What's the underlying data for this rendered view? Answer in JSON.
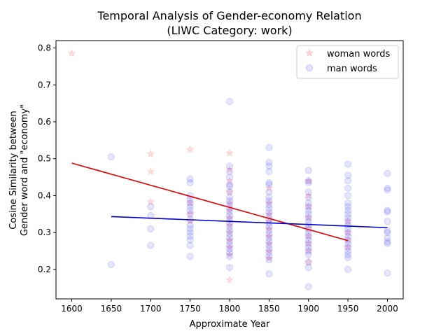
{
  "chart_data": {
    "type": "scatter",
    "title": [
      "Temporal Analysis of Gender-economy Relation",
      "(LIWC Category: work)"
    ],
    "xlabel": "Approximate Year",
    "ylabel": [
      "Cosine Similarity between",
      "Gender word and \"economy\""
    ],
    "xlim": [
      1580,
      2020
    ],
    "ylim": [
      0.12,
      0.82
    ],
    "x_ticks": [
      1600,
      1650,
      1700,
      1750,
      1800,
      1850,
      1900,
      1950,
      2000
    ],
    "y_ticks": [
      0.2,
      0.3,
      0.4,
      0.5,
      0.6,
      0.7,
      0.8
    ],
    "legend_position": "top-right",
    "series": [
      {
        "name": "woman words",
        "color": "#ff0000",
        "marker": "star",
        "points": [
          [
            1600,
            0.785
          ],
          [
            1700,
            0.513
          ],
          [
            1700,
            0.465
          ],
          [
            1700,
            0.383
          ],
          [
            1750,
            0.525
          ],
          [
            1750,
            0.38
          ],
          [
            1750,
            0.35
          ],
          [
            1750,
            0.33
          ],
          [
            1800,
            0.515
          ],
          [
            1800,
            0.47
          ],
          [
            1800,
            0.44
          ],
          [
            1800,
            0.41
          ],
          [
            1800,
            0.38
          ],
          [
            1800,
            0.36
          ],
          [
            1800,
            0.34
          ],
          [
            1800,
            0.32
          ],
          [
            1800,
            0.3
          ],
          [
            1800,
            0.28
          ],
          [
            1800,
            0.26
          ],
          [
            1800,
            0.24
          ],
          [
            1800,
            0.172
          ],
          [
            1850,
            0.42
          ],
          [
            1850,
            0.38
          ],
          [
            1850,
            0.35
          ],
          [
            1850,
            0.33
          ],
          [
            1850,
            0.31
          ],
          [
            1850,
            0.29
          ],
          [
            1850,
            0.27
          ],
          [
            1850,
            0.25
          ],
          [
            1850,
            0.23
          ],
          [
            1900,
            0.44
          ],
          [
            1900,
            0.4
          ],
          [
            1900,
            0.37
          ],
          [
            1900,
            0.34
          ],
          [
            1900,
            0.31
          ],
          [
            1900,
            0.29
          ],
          [
            1900,
            0.27
          ],
          [
            1900,
            0.25
          ],
          [
            1900,
            0.22
          ],
          [
            1950,
            0.33
          ],
          [
            1950,
            0.3
          ],
          [
            1950,
            0.28
          ],
          [
            1950,
            0.26
          ]
        ],
        "trend": [
          [
            1600,
            0.488
          ],
          [
            1950,
            0.278
          ]
        ]
      },
      {
        "name": "man words",
        "color": "#0000ff",
        "marker": "circle",
        "points": [
          [
            1650,
            0.505
          ],
          [
            1650,
            0.213
          ],
          [
            1700,
            0.37
          ],
          [
            1700,
            0.346
          ],
          [
            1700,
            0.31
          ],
          [
            1700,
            0.265
          ],
          [
            1750,
            0.445
          ],
          [
            1750,
            0.435
          ],
          [
            1750,
            0.4
          ],
          [
            1750,
            0.39
          ],
          [
            1750,
            0.38
          ],
          [
            1750,
            0.37
          ],
          [
            1750,
            0.36
          ],
          [
            1750,
            0.35
          ],
          [
            1750,
            0.335
          ],
          [
            1750,
            0.32
          ],
          [
            1750,
            0.31
          ],
          [
            1750,
            0.3
          ],
          [
            1750,
            0.29
          ],
          [
            1750,
            0.28
          ],
          [
            1750,
            0.265
          ],
          [
            1750,
            0.235
          ],
          [
            1800,
            0.655
          ],
          [
            1800,
            0.48
          ],
          [
            1800,
            0.465
          ],
          [
            1800,
            0.45
          ],
          [
            1800,
            0.43
          ],
          [
            1800,
            0.425
          ],
          [
            1800,
            0.41
          ],
          [
            1800,
            0.395
          ],
          [
            1800,
            0.385
          ],
          [
            1800,
            0.375
          ],
          [
            1800,
            0.365
          ],
          [
            1800,
            0.355
          ],
          [
            1800,
            0.345
          ],
          [
            1800,
            0.335
          ],
          [
            1800,
            0.325
          ],
          [
            1800,
            0.315
          ],
          [
            1800,
            0.305
          ],
          [
            1800,
            0.295
          ],
          [
            1800,
            0.285
          ],
          [
            1800,
            0.275
          ],
          [
            1800,
            0.265
          ],
          [
            1800,
            0.255
          ],
          [
            1800,
            0.245
          ],
          [
            1800,
            0.235
          ],
          [
            1800,
            0.205
          ],
          [
            1850,
            0.53
          ],
          [
            1850,
            0.49
          ],
          [
            1850,
            0.48
          ],
          [
            1850,
            0.465
          ],
          [
            1850,
            0.435
          ],
          [
            1850,
            0.43
          ],
          [
            1850,
            0.41
          ],
          [
            1850,
            0.395
          ],
          [
            1850,
            0.385
          ],
          [
            1850,
            0.375
          ],
          [
            1850,
            0.365
          ],
          [
            1850,
            0.355
          ],
          [
            1850,
            0.345
          ],
          [
            1850,
            0.335
          ],
          [
            1850,
            0.325
          ],
          [
            1850,
            0.315
          ],
          [
            1850,
            0.305
          ],
          [
            1850,
            0.295
          ],
          [
            1850,
            0.285
          ],
          [
            1850,
            0.275
          ],
          [
            1850,
            0.265
          ],
          [
            1850,
            0.255
          ],
          [
            1850,
            0.245
          ],
          [
            1850,
            0.235
          ],
          [
            1850,
            0.225
          ],
          [
            1850,
            0.188
          ],
          [
            1900,
            0.468
          ],
          [
            1900,
            0.44
          ],
          [
            1900,
            0.435
          ],
          [
            1900,
            0.41
          ],
          [
            1900,
            0.395
          ],
          [
            1900,
            0.38
          ],
          [
            1900,
            0.37
          ],
          [
            1900,
            0.36
          ],
          [
            1900,
            0.35
          ],
          [
            1900,
            0.34
          ],
          [
            1900,
            0.33
          ],
          [
            1900,
            0.32
          ],
          [
            1900,
            0.31
          ],
          [
            1900,
            0.3
          ],
          [
            1900,
            0.29
          ],
          [
            1900,
            0.28
          ],
          [
            1900,
            0.27
          ],
          [
            1900,
            0.26
          ],
          [
            1900,
            0.25
          ],
          [
            1900,
            0.24
          ],
          [
            1900,
            0.22
          ],
          [
            1900,
            0.205
          ],
          [
            1900,
            0.153
          ],
          [
            1950,
            0.485
          ],
          [
            1950,
            0.455
          ],
          [
            1950,
            0.44
          ],
          [
            1950,
            0.42
          ],
          [
            1950,
            0.4
          ],
          [
            1950,
            0.38
          ],
          [
            1950,
            0.37
          ],
          [
            1950,
            0.36
          ],
          [
            1950,
            0.35
          ],
          [
            1950,
            0.34
          ],
          [
            1950,
            0.33
          ],
          [
            1950,
            0.32
          ],
          [
            1950,
            0.31
          ],
          [
            1950,
            0.3
          ],
          [
            1950,
            0.29
          ],
          [
            1950,
            0.28
          ],
          [
            1950,
            0.27
          ],
          [
            1950,
            0.26
          ],
          [
            1950,
            0.25
          ],
          [
            1950,
            0.24
          ],
          [
            1950,
            0.232
          ],
          [
            1950,
            0.2
          ],
          [
            2000,
            0.46
          ],
          [
            2000,
            0.42
          ],
          [
            2000,
            0.415
          ],
          [
            2000,
            0.36
          ],
          [
            2000,
            0.356
          ],
          [
            2000,
            0.33
          ],
          [
            2000,
            0.305
          ],
          [
            2000,
            0.3
          ],
          [
            2000,
            0.285
          ],
          [
            2000,
            0.275
          ],
          [
            2000,
            0.27
          ],
          [
            2000,
            0.19
          ]
        ],
        "trend": [
          [
            1650,
            0.343
          ],
          [
            2000,
            0.313
          ]
        ]
      }
    ]
  }
}
